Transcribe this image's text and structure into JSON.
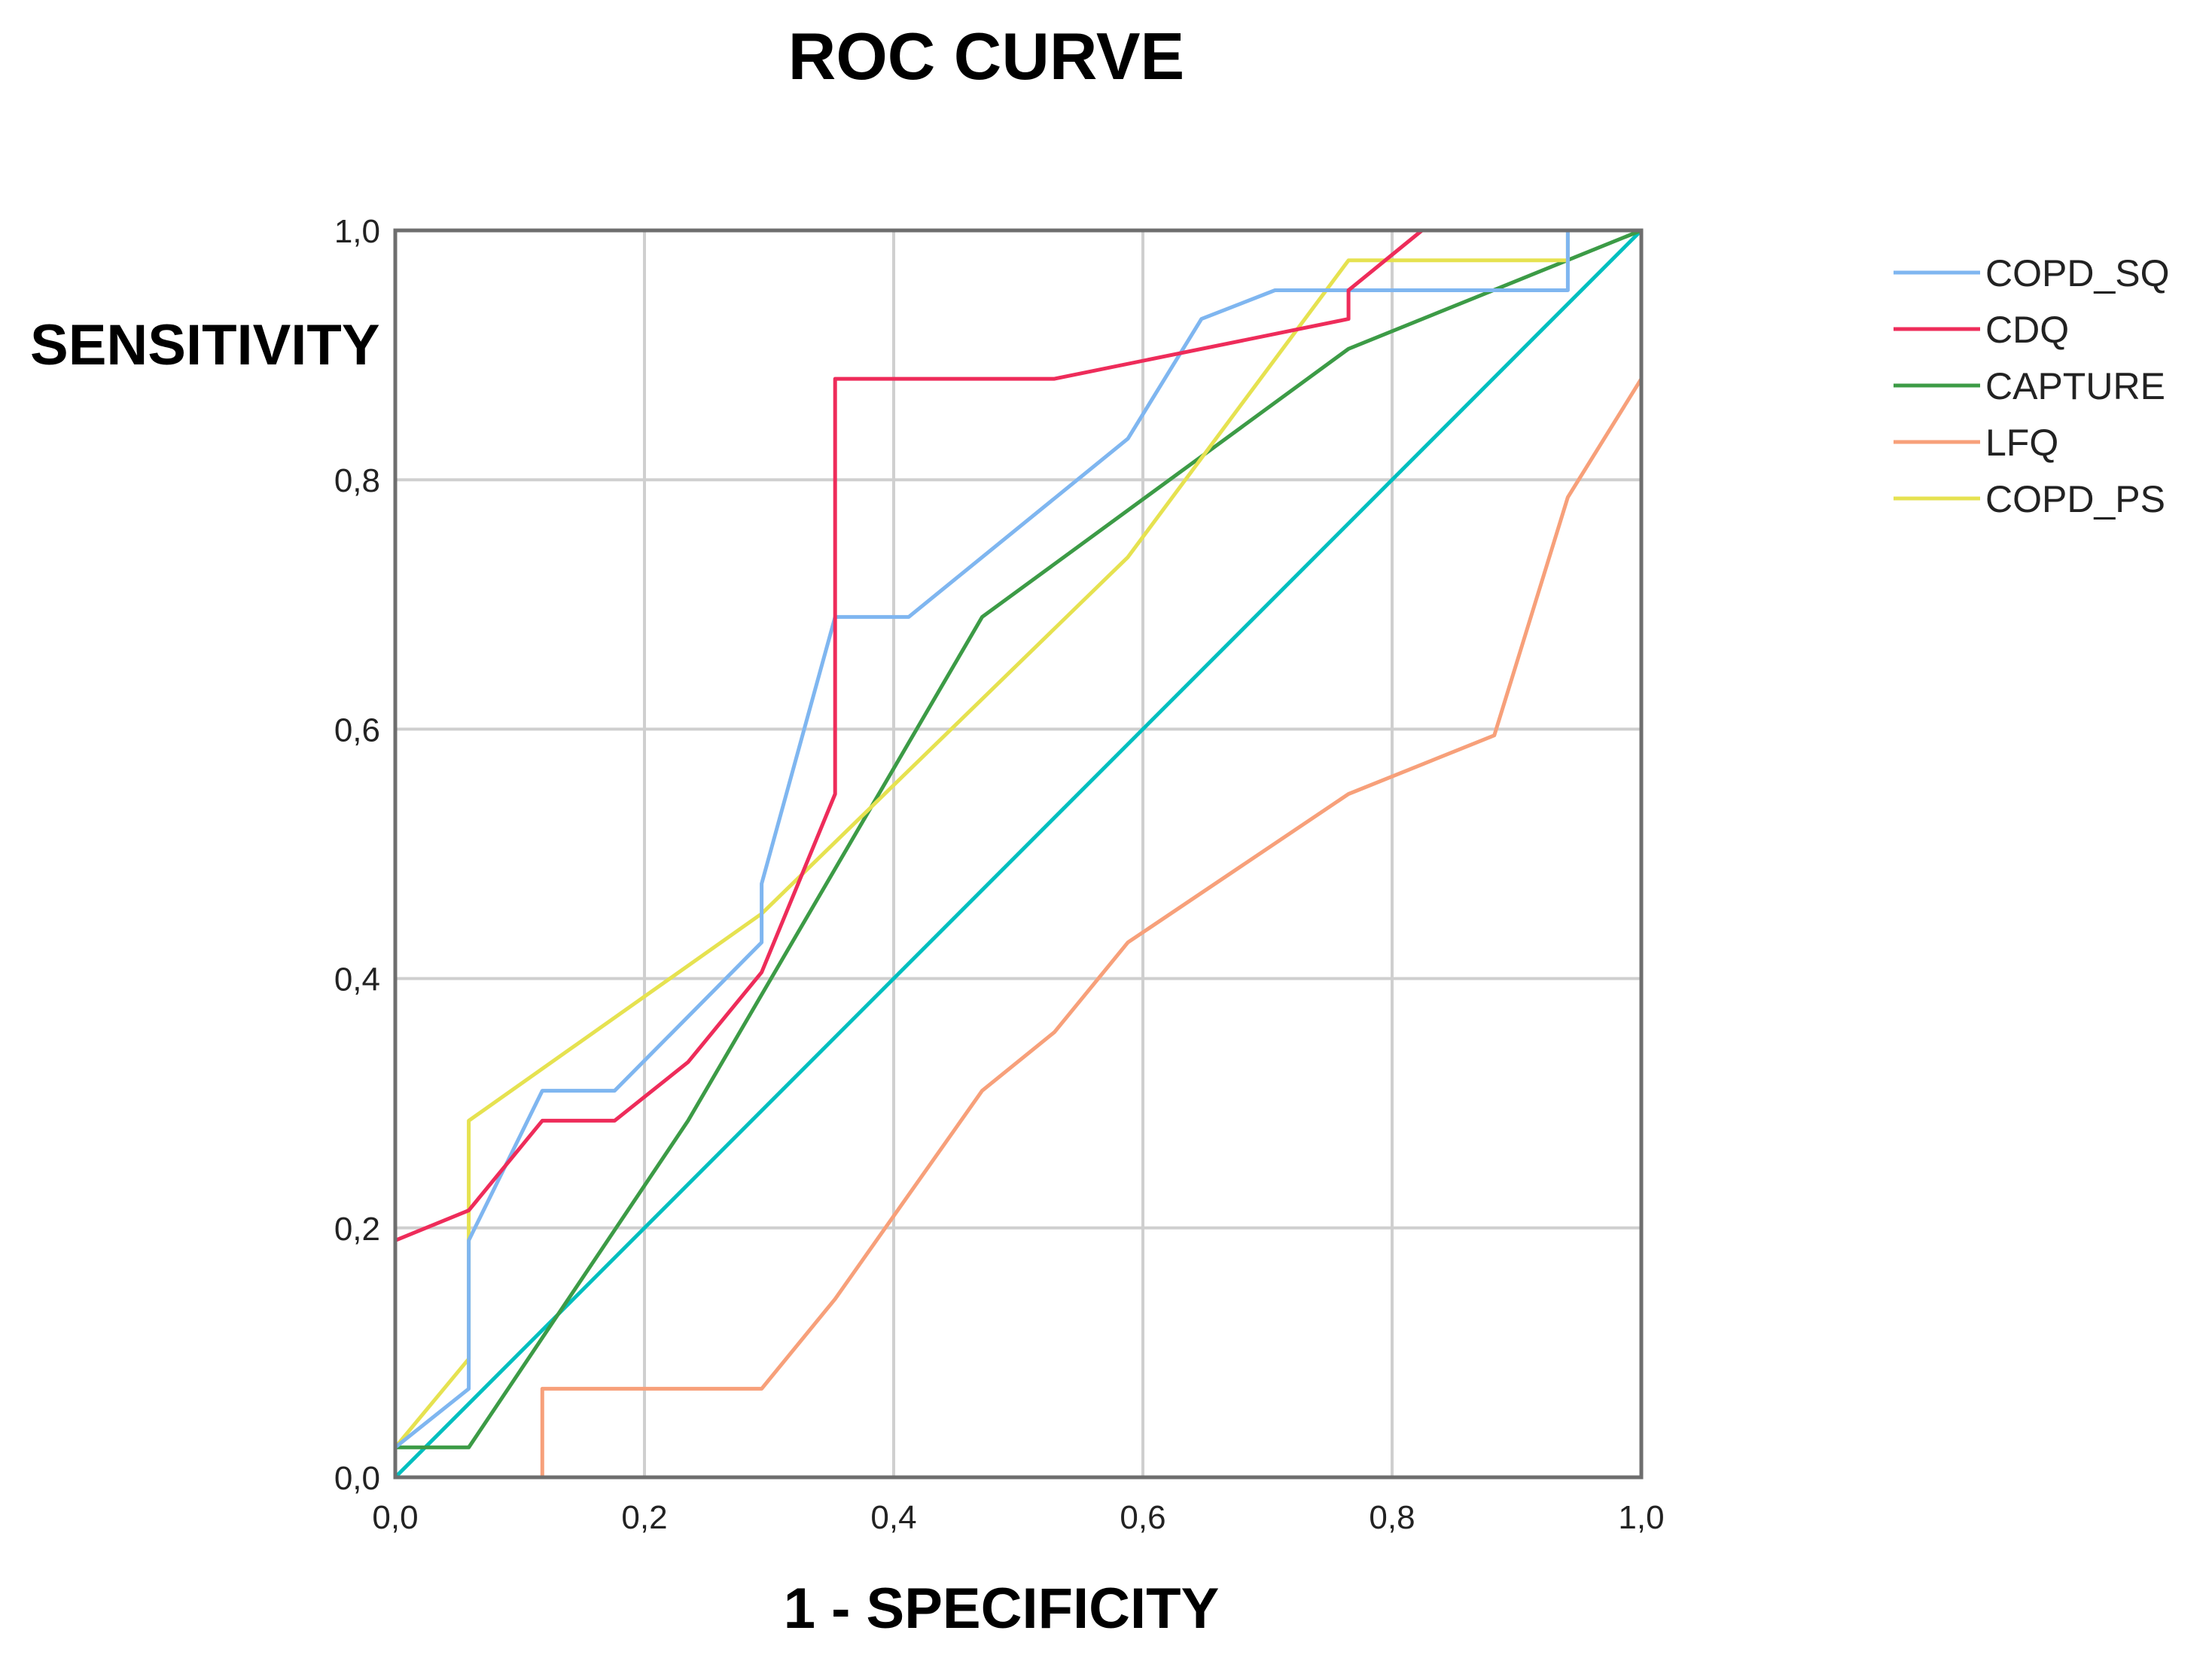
{
  "chart_data": {
    "type": "line",
    "title": "ROC CURVE",
    "xlabel": "1 - SPECIFICITY",
    "ylabel": "SENSITIVITY",
    "xlim": [
      0,
      1
    ],
    "ylim": [
      0,
      1
    ],
    "grid": true,
    "legend_position": "right",
    "x_ticks": [
      0,
      0.2,
      0.4,
      0.6,
      0.8,
      1.0
    ],
    "x_tick_labels": [
      "0,0",
      "0,2",
      "0,4",
      "0,6",
      "0,8",
      "1,0"
    ],
    "y_ticks": [
      0,
      0.2,
      0.4,
      0.6,
      0.8,
      1.0
    ],
    "y_tick_labels": [
      "0,0",
      "0,2",
      "0,4",
      "0,6",
      "0,8",
      "1,0"
    ],
    "reference_line": {
      "color": "#00bfbf",
      "x": [
        0,
        1
      ],
      "y": [
        0,
        1
      ]
    },
    "series": [
      {
        "name": "COPD_SQ",
        "color": "#7fb6f0",
        "x": [
          0,
          0.059,
          0.059,
          0.118,
          0.176,
          0.294,
          0.294,
          0.353,
          0.412,
          0.588,
          0.647,
          0.706,
          0.941,
          0.941,
          1.0
        ],
        "y": [
          0.024,
          0.071,
          0.19,
          0.31,
          0.31,
          0.429,
          0.476,
          0.69,
          0.69,
          0.833,
          0.929,
          0.952,
          0.952,
          1.0,
          1.0
        ]
      },
      {
        "name": "CDQ",
        "color": "#ee2c5a",
        "x": [
          0,
          0,
          0.059,
          0.118,
          0.176,
          0.235,
          0.294,
          0.353,
          0.353,
          0.529,
          0.765,
          0.765,
          0.824,
          1.0
        ],
        "y": [
          0,
          0.19,
          0.214,
          0.286,
          0.286,
          0.333,
          0.405,
          0.548,
          0.881,
          0.881,
          0.929,
          0.952,
          1.0,
          1.0
        ]
      },
      {
        "name": "CAPTURE",
        "color": "#3c9b46",
        "x": [
          0,
          0.059,
          0.235,
          0.471,
          0.765,
          1.0
        ],
        "y": [
          0.024,
          0.024,
          0.286,
          0.69,
          0.905,
          1.0
        ]
      },
      {
        "name": "LFQ",
        "color": "#f7a07a",
        "x": [
          0,
          0.118,
          0.118,
          0.294,
          0.353,
          0.471,
          0.529,
          0.588,
          0.765,
          0.882,
          0.941,
          1.0,
          1.0
        ],
        "y": [
          0,
          0,
          0.071,
          0.071,
          0.143,
          0.31,
          0.357,
          0.429,
          0.548,
          0.595,
          0.786,
          0.881,
          1.0
        ]
      },
      {
        "name": "COPD_PS",
        "color": "#e6e250",
        "x": [
          0,
          0.059,
          0.059,
          0.294,
          0.588,
          0.765,
          0.941,
          0.941,
          1.0
        ],
        "y": [
          0.024,
          0.095,
          0.286,
          0.452,
          0.738,
          0.976,
          0.976,
          1.0,
          1.0
        ]
      }
    ]
  }
}
